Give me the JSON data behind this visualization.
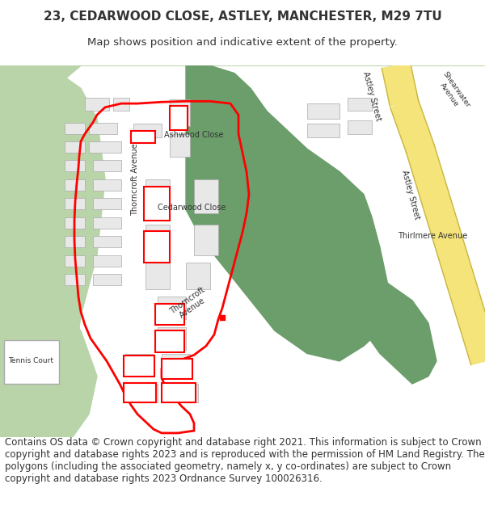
{
  "title": "23, CEDARWOOD CLOSE, ASTLEY, MANCHESTER, M29 7TU",
  "subtitle": "Map shows position and indicative extent of the property.",
  "footer": "Contains OS data © Crown copyright and database right 2021. This information is subject to Crown copyright and database rights 2023 and is reproduced with the permission of HM Land Registry. The polygons (including the associated geometry, namely x, y co-ordinates) are subject to Crown copyright and database rights 2023 Ordnance Survey 100026316.",
  "title_fontsize": 11,
  "subtitle_fontsize": 9.5,
  "footer_fontsize": 8.5,
  "bg_color": "#ffffff",
  "map_bg": "#f2efe9",
  "green_light": "#b8d4a8",
  "green_dark": "#6b9e6b",
  "road_yellow": "#f5e47a",
  "road_outline": "#c8b84a",
  "building_fill": "#e8e8e8",
  "building_edge": "#aaaaaa",
  "red_boundary": "#ff0000",
  "text_color": "#333333",
  "label_fontsize": 7,
  "label_small_fontsize": 6.5
}
